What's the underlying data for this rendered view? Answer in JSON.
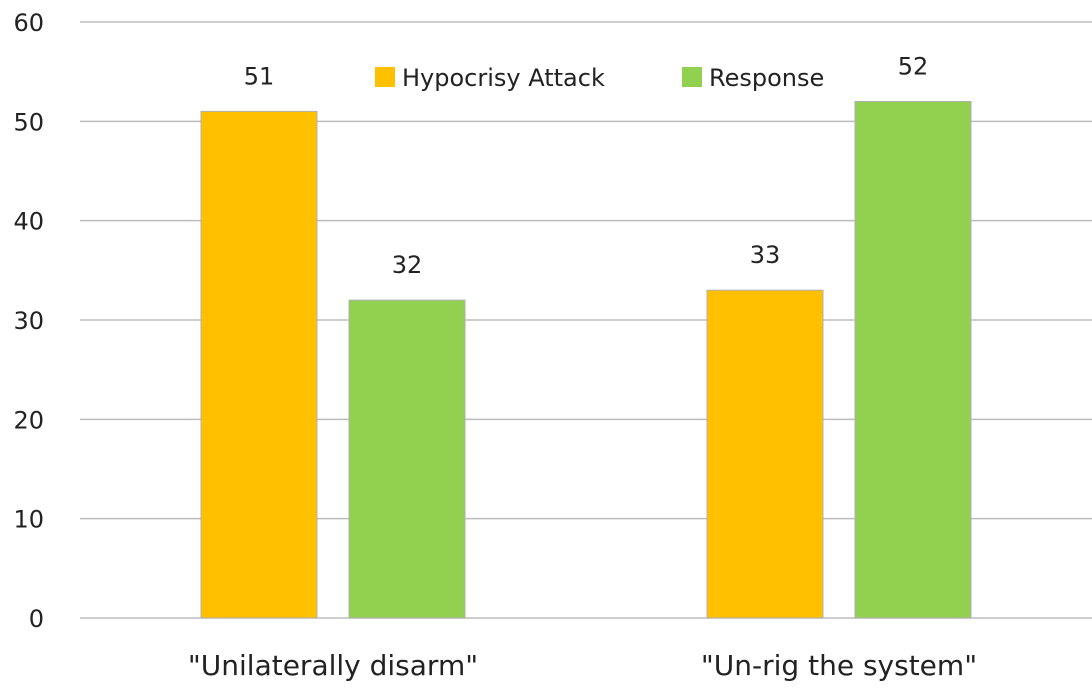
{
  "colors": {
    "hypocrisy_attack": "#ffc000",
    "response": "#92d050"
  },
  "chart_data": {
    "type": "bar",
    "title": "",
    "xlabel": "",
    "ylabel": "",
    "categories": [
      "\"Unilaterally disarm\"",
      "\"Un-rig the system\""
    ],
    "series": [
      {
        "name": "Hypocrisy Attack",
        "values": [
          51,
          33
        ]
      },
      {
        "name": "Response",
        "values": [
          32,
          52
        ]
      }
    ],
    "ylim": [
      0,
      60
    ],
    "yticks": [
      "0",
      "10",
      "20",
      "30",
      "40",
      "50",
      "60"
    ],
    "grid": true,
    "legend_position": "top-center",
    "data_labels": true
  }
}
